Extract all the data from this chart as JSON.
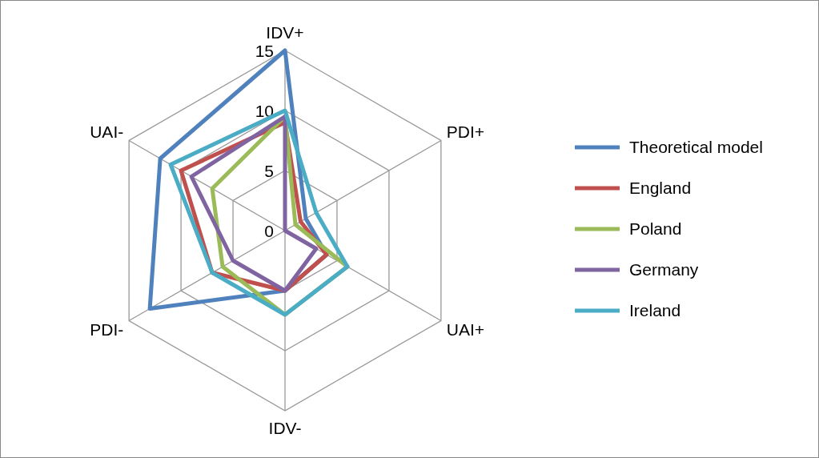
{
  "chart_data": {
    "type": "radar",
    "categories": [
      "IDV+",
      "PDI+",
      "UAI+",
      "IDV-",
      "PDI-",
      "UAI-"
    ],
    "ylim": [
      0,
      15
    ],
    "yticks": [
      0,
      5,
      10,
      15
    ],
    "grid": true,
    "legend": "right",
    "series": [
      {
        "name": "Theoretical model",
        "color": "#4f81bd",
        "values": [
          15,
          2,
          4,
          5,
          13,
          12
        ]
      },
      {
        "name": "England",
        "color": "#c0504d",
        "values": [
          9,
          1.5,
          4,
          5,
          7,
          10
        ]
      },
      {
        "name": "Poland",
        "color": "#9bbb59",
        "values": [
          9.5,
          1,
          6,
          7,
          6,
          7
        ]
      },
      {
        "name": "Germany",
        "color": "#8064a2",
        "values": [
          9.5,
          0,
          3,
          5,
          5,
          9
        ]
      },
      {
        "name": "Ireland",
        "color": "#4bacc6",
        "values": [
          10,
          3,
          6,
          7,
          7,
          11
        ]
      }
    ]
  }
}
